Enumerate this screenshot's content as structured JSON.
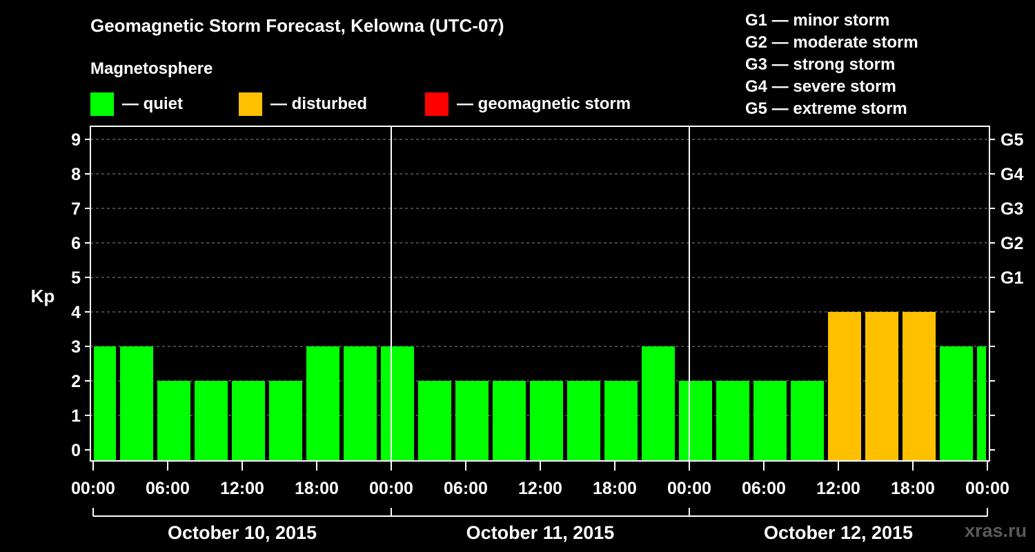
{
  "title": "Geomagnetic Storm Forecast, Kelowna (UTC-07)",
  "legend": {
    "heading": "Magnetosphere",
    "items": [
      {
        "label": "— quiet",
        "color": "#00ff00"
      },
      {
        "label": "— disturbed",
        "color": "#ffc000"
      },
      {
        "label": "— geomagnetic storm",
        "color": "#ff0000"
      }
    ]
  },
  "storm_scale": [
    "G1 — minor storm",
    "G2 — moderate storm",
    "G3 — strong storm",
    "G4 — severe storm",
    "G5 — extreme storm"
  ],
  "watermark": "xras.ru",
  "chart_data": {
    "type": "bar",
    "ylabel": "Kp",
    "ylim": [
      0,
      9
    ],
    "y_ticks": [
      "0",
      "1",
      "2",
      "3",
      "4",
      "5",
      "6",
      "7",
      "8",
      "9"
    ],
    "right_ticks": [
      {
        "kp": 5,
        "label": "G1"
      },
      {
        "kp": 6,
        "label": "G2"
      },
      {
        "kp": 7,
        "label": "G3"
      },
      {
        "kp": 8,
        "label": "G4"
      },
      {
        "kp": 9,
        "label": "G5"
      }
    ],
    "grid": true,
    "x_tick_labels": [
      "00:00",
      "06:00",
      "12:00",
      "18:00",
      "00:00",
      "06:00",
      "12:00",
      "18:00",
      "00:00",
      "06:00",
      "12:00",
      "18:00",
      "00:00"
    ],
    "days": [
      "October 10, 2015",
      "October 11, 2015",
      "October 12, 2015"
    ],
    "values": [
      3,
      3,
      2,
      2,
      2,
      2,
      3,
      3,
      3,
      2,
      2,
      2,
      2,
      2,
      2,
      3,
      2,
      2,
      2,
      2,
      4,
      4,
      4,
      3,
      3
    ],
    "colors": {
      "quiet": "#00ff00",
      "disturbed": "#ffc000",
      "storm": "#ff0000"
    }
  }
}
